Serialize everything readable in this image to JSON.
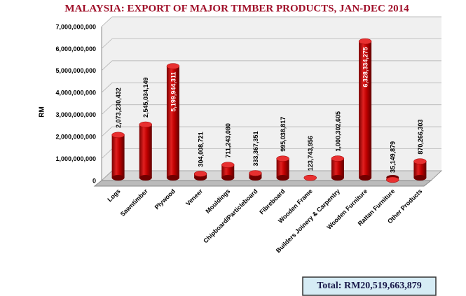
{
  "chart_data": {
    "type": "bar3d",
    "title": "MALAYSIA: EXPORT OF MAJOR TIMBER PRODUCTS, JAN-DEC 2014",
    "y_label": "RM",
    "categories": [
      "Logs",
      "Sawntimber",
      "Plywood",
      "Veneer",
      "Mouldings",
      "Chipboard/Particleboard",
      "Fibreboard",
      "Wooden Frame",
      "Builders Joinery & Carpentry",
      "Wooden Furniture",
      "Rattan Furniture",
      "Other Products"
    ],
    "values": [
      2073230432,
      2545034149,
      5199944311,
      304008721,
      711243080,
      333367351,
      995038817,
      123743956,
      1000302605,
      6328334275,
      35149879,
      870266303
    ],
    "value_labels": [
      "2,073,230,432",
      "2,545,034,149",
      "5,199,944,311",
      "304,008,721",
      "711,243,080",
      "333,367,351",
      "995,038,817",
      "123,743,956",
      "1,000,302,605",
      "6,328,334,275",
      "35,149,879",
      "870,266,303"
    ],
    "color": "#c00000",
    "ylim": [
      0,
      7000000000
    ],
    "yticks": [
      0,
      {
        "value": 1000000000,
        "label": "1,000,000,000"
      },
      {
        "value": 2000000000,
        "label": "2,000,000,000"
      },
      {
        "value": 3000000000,
        "label": "3,000,000,000"
      },
      {
        "value": 4000000000,
        "label": "4,000,000,000"
      },
      {
        "value": 5000000000,
        "label": "5,000,000,000"
      },
      {
        "value": 6000000000,
        "label": "6,000,000,000"
      },
      {
        "value": 7000000000,
        "label": "7,000,000,000"
      }
    ],
    "grid": true,
    "total": "Total: RM20,519,663,879"
  }
}
